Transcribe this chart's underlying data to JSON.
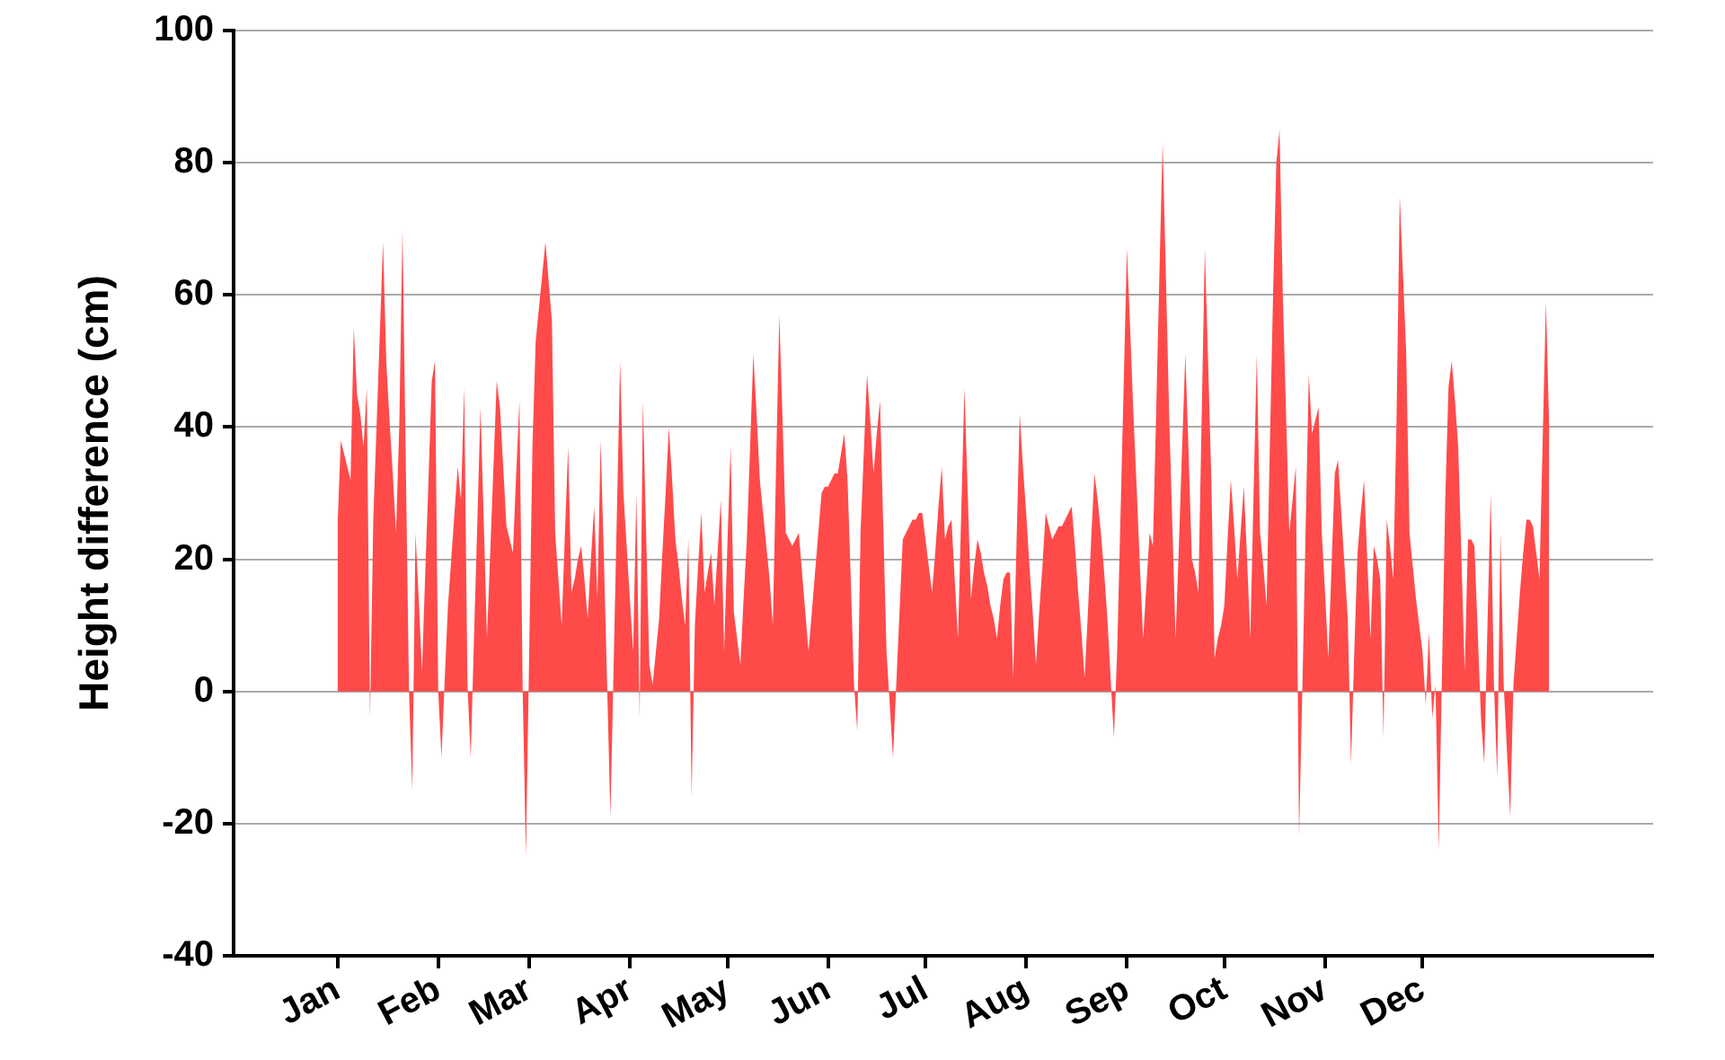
{
  "chart_data": {
    "type": "area",
    "ylabel": "Height difference (cm)",
    "color": "#ff4a4a",
    "grid": "y",
    "ylim": [
      -40,
      100
    ],
    "yticks": [
      -40,
      -20,
      0,
      20,
      40,
      60,
      80,
      100
    ],
    "categories": [
      null,
      null,
      null,
      null,
      null,
      null,
      null,
      null,
      null,
      null,
      null,
      null,
      null,
      null,
      null,
      null,
      null,
      null,
      null,
      null,
      null,
      null,
      null,
      null,
      null,
      null,
      null,
      null,
      null,
      null,
      null,
      null,
      "Jan",
      null,
      null,
      null,
      null,
      null,
      null,
      null,
      null,
      null,
      null,
      null,
      null,
      null,
      null,
      null,
      null,
      null,
      null,
      null,
      null,
      null,
      null,
      null,
      null,
      null,
      null,
      null,
      null,
      null,
      null,
      "Feb",
      null,
      null,
      null,
      null,
      null,
      null,
      null,
      null,
      null,
      null,
      null,
      null,
      null,
      null,
      null,
      null,
      null,
      null,
      null,
      null,
      null,
      null,
      null,
      null,
      null,
      null,
      null,
      "Mar",
      null,
      null,
      null,
      null,
      null,
      null,
      null,
      null,
      null,
      null,
      null,
      null,
      null,
      null,
      null,
      null,
      null,
      null,
      null,
      null,
      null,
      null,
      null,
      null,
      null,
      null,
      null,
      null,
      null,
      null,
      "Apr",
      null,
      null,
      null,
      null,
      null,
      null,
      null,
      null,
      null,
      null,
      null,
      null,
      null,
      null,
      null,
      null,
      null,
      null,
      null,
      null,
      null,
      null,
      null,
      null,
      null,
      null,
      null,
      null,
      null,
      "May",
      null,
      null,
      null,
      null,
      null,
      null,
      null,
      null,
      null,
      null,
      null,
      null,
      null,
      null,
      null,
      null,
      null,
      null,
      null,
      null,
      null,
      null,
      null,
      null,
      null,
      null,
      null,
      null,
      null,
      null,
      "Jun",
      null,
      null,
      null,
      null,
      null,
      null,
      null,
      null,
      null,
      null,
      null,
      null,
      null,
      null,
      null,
      null,
      null,
      null,
      null,
      null,
      null,
      null,
      null,
      null,
      null,
      null,
      null,
      null,
      null,
      "Jul",
      null,
      null,
      null,
      null,
      null,
      null,
      null,
      null,
      null,
      null,
      null,
      null,
      null,
      null,
      null,
      null,
      null,
      null,
      null,
      null,
      null,
      null,
      null,
      null,
      null,
      null,
      null,
      null,
      null,
      null,
      "Aug",
      null,
      null,
      null,
      null,
      null,
      null,
      null,
      null,
      null,
      null,
      null,
      null,
      null,
      null,
      null,
      null,
      null,
      null,
      null,
      null,
      null,
      null,
      null,
      null,
      null,
      null,
      null,
      null,
      null,
      null,
      "Sep",
      null,
      null,
      null,
      null,
      null,
      null,
      null,
      null,
      null,
      null,
      null,
      null,
      null,
      null,
      null,
      null,
      null,
      null,
      null,
      null,
      null,
      null,
      null,
      null,
      null,
      null,
      null,
      null,
      null,
      "Oct",
      null,
      null,
      null,
      null,
      null,
      null,
      null,
      null,
      null,
      null,
      null,
      null,
      null,
      null,
      null,
      null,
      null,
      null,
      null,
      null,
      null,
      null,
      null,
      null,
      null,
      null,
      null,
      null,
      null,
      null,
      "Nov",
      null,
      null,
      null,
      null,
      null,
      null,
      null,
      null,
      null,
      null,
      null,
      null,
      null,
      null,
      null,
      null,
      null,
      null,
      null,
      null,
      null,
      null,
      null,
      null,
      null,
      null,
      null,
      null,
      null,
      "Dec",
      null,
      null,
      null,
      null,
      null,
      null,
      null,
      null,
      null,
      null,
      null,
      null,
      null,
      null,
      null,
      null,
      null,
      null,
      null,
      null,
      null,
      null,
      null,
      null,
      null,
      null,
      null,
      null,
      null,
      null,
      null,
      null,
      null,
      null,
      null,
      null,
      null,
      null,
      null,
      null,
      null,
      null,
      null,
      null,
      null,
      null,
      null,
      null,
      null,
      null,
      null,
      null,
      null,
      null,
      null,
      null,
      null,
      null,
      null,
      null,
      null,
      null,
      null,
      null,
      null,
      null,
      null,
      null,
      null,
      null,
      null
    ],
    "values": [
      null,
      null,
      null,
      null,
      null,
      null,
      null,
      null,
      null,
      null,
      null,
      null,
      null,
      null,
      null,
      null,
      null,
      null,
      null,
      null,
      null,
      null,
      null,
      null,
      null,
      null,
      null,
      null,
      null,
      null,
      null,
      null,
      25,
      38,
      36,
      34,
      32,
      55,
      45,
      42,
      37,
      46,
      -4,
      26,
      40,
      54,
      68,
      50,
      41,
      33,
      24,
      40,
      70,
      35,
      0,
      -15,
      24,
      14,
      3,
      18,
      32,
      47,
      50,
      0,
      -10,
      2,
      13,
      20,
      27,
      34,
      29,
      46,
      1,
      -10,
      8,
      25,
      43,
      26,
      8,
      21,
      34,
      47,
      43,
      34,
      25,
      23,
      21,
      33,
      44,
      0,
      -25,
      6,
      37,
      53,
      58,
      63,
      68,
      62,
      56,
      24,
      17,
      10,
      24,
      37,
      15,
      17,
      20,
      22,
      17,
      11,
      20,
      28,
      14,
      38,
      20,
      1,
      -19,
      4,
      27,
      50,
      30,
      22,
      14,
      6,
      30,
      -4,
      44,
      24,
      4,
      1,
      6,
      11,
      21,
      30,
      40,
      32,
      23,
      19,
      14,
      10,
      23,
      -16,
      10,
      19,
      27,
      15,
      18,
      21,
      13,
      21,
      29,
      6,
      22,
      37,
      12,
      8,
      4,
      14,
      23,
      37,
      51,
      42,
      32,
      27,
      22,
      17,
      10,
      34,
      57,
      41,
      24,
      23,
      22,
      23,
      24,
      18,
      12,
      6,
      12,
      18,
      24,
      30,
      31,
      31,
      32,
      33,
      33,
      36,
      39,
      32,
      17,
      1,
      -6,
      24,
      36,
      48,
      41,
      33,
      39,
      44,
      25,
      6,
      -2,
      -10,
      1,
      12,
      23,
      24,
      25,
      26,
      26,
      27,
      27,
      23,
      19,
      15,
      21,
      28,
      34,
      23,
      25,
      26,
      17,
      8,
      27,
      46,
      30,
      14,
      19,
      23,
      21,
      18,
      16,
      13,
      11,
      8,
      13,
      17,
      18,
      18,
      2,
      22,
      42,
      34,
      27,
      19,
      12,
      4,
      12,
      19,
      27,
      25,
      23,
      24,
      25,
      25,
      26,
      27,
      28,
      22,
      15,
      9,
      2,
      12,
      23,
      33,
      29,
      24,
      18,
      11,
      2,
      -7,
      6,
      26,
      46,
      67,
      55,
      42,
      31,
      19,
      8,
      16,
      24,
      22,
      42,
      63,
      83,
      63,
      42,
      25,
      8,
      22,
      37,
      51,
      36,
      20,
      18,
      15,
      41,
      67,
      50,
      32,
      5,
      8,
      10,
      13,
      23,
      32,
      25,
      17,
      24,
      31,
      20,
      8,
      30,
      51,
      24,
      19,
      13,
      37,
      60,
      80,
      85,
      60,
      42,
      24,
      29,
      34,
      -22,
      0,
      24,
      48,
      39,
      41,
      43,
      24,
      15,
      5,
      19,
      33,
      35,
      27,
      19,
      11,
      -11,
      6,
      21,
      27,
      32,
      20,
      8,
      22,
      20,
      17,
      -7,
      26,
      22,
      17,
      41,
      75,
      63,
      51,
      24,
      19,
      14,
      10,
      6,
      -2,
      9,
      -4,
      1,
      -24,
      3,
      29,
      46,
      50,
      44,
      37,
      20,
      3,
      23,
      23,
      22,
      9,
      -4,
      -11,
      10,
      30,
      1,
      -13,
      24,
      1,
      -9,
      -19,
      1,
      8,
      15,
      21,
      26,
      26,
      25,
      21,
      17,
      38,
      59,
      40,
      null,
      null,
      null,
      null,
      null,
      null,
      null,
      null,
      null,
      null,
      null,
      null,
      null,
      null,
      null,
      null,
      null,
      null,
      null,
      null,
      null,
      null,
      null,
      null,
      null,
      null,
      null,
      null,
      null,
      null,
      null,
      null
    ]
  }
}
